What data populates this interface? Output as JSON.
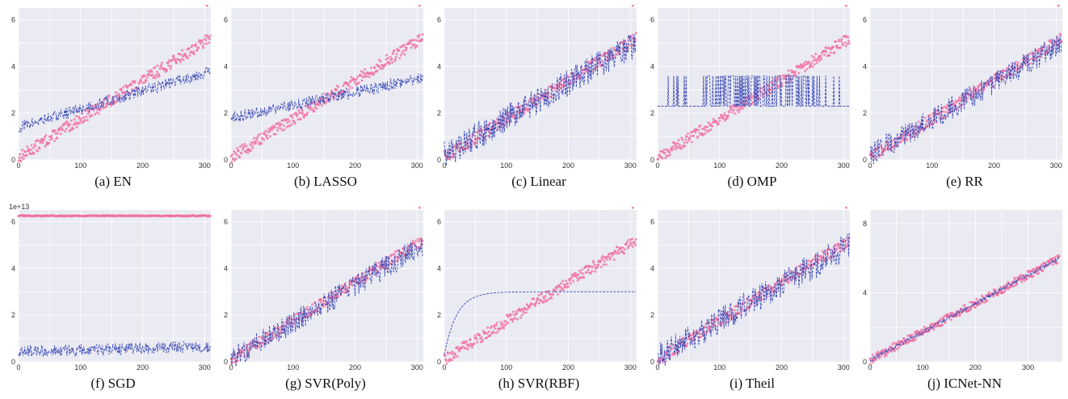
{
  "colors": {
    "plot_bg": "#eaeaf2",
    "grid": "#ffffff",
    "actual_points": "#f06ea0",
    "prediction_line": "#3b4bb4"
  },
  "chart_data": [
    {
      "type": "scatter",
      "caption": "(a)  EN",
      "xlim": [
        0,
        310
      ],
      "ylim": [
        0,
        6.5
      ],
      "xticks": [
        0,
        100,
        200,
        300
      ],
      "yticks": [
        0,
        2,
        4,
        6
      ],
      "series": [
        {
          "kind": "points",
          "role": "actual",
          "n": 310,
          "start": 0.1,
          "end": 5.2,
          "noise": 0.25
        },
        {
          "kind": "line",
          "role": "prediction",
          "model": "linear",
          "start": 1.4,
          "end": 3.8,
          "noise": 0.25
        }
      ],
      "grid": true
    },
    {
      "type": "scatter",
      "caption": "(b)  LASSO",
      "xlim": [
        0,
        310
      ],
      "ylim": [
        0,
        6.5
      ],
      "xticks": [
        0,
        100,
        200,
        300
      ],
      "yticks": [
        0,
        2,
        4,
        6
      ],
      "series": [
        {
          "kind": "points",
          "role": "actual",
          "n": 310,
          "start": 0.1,
          "end": 5.2,
          "noise": 0.25
        },
        {
          "kind": "line",
          "role": "prediction",
          "model": "linear",
          "start": 1.8,
          "end": 3.5,
          "noise": 0.25
        }
      ],
      "grid": true
    },
    {
      "type": "scatter",
      "caption": "(c)  Linear",
      "xlim": [
        0,
        310
      ],
      "ylim": [
        0,
        6.5
      ],
      "xticks": [
        0,
        100,
        200,
        300
      ],
      "yticks": [
        0,
        2,
        4,
        6
      ],
      "series": [
        {
          "kind": "points",
          "role": "actual",
          "n": 310,
          "start": 0.1,
          "end": 5.2,
          "noise": 0.25
        },
        {
          "kind": "line",
          "role": "prediction",
          "model": "linear",
          "start": 0.2,
          "end": 5.0,
          "noise": 0.6
        }
      ],
      "grid": true
    },
    {
      "type": "scatter",
      "caption": "(d)  OMP",
      "xlim": [
        0,
        310
      ],
      "ylim": [
        0,
        6.5
      ],
      "xticks": [
        0,
        100,
        200,
        300
      ],
      "yticks": [
        0,
        2,
        4,
        6
      ],
      "series": [
        {
          "kind": "points",
          "role": "actual",
          "n": 310,
          "start": 0.1,
          "end": 5.2,
          "noise": 0.25
        },
        {
          "kind": "line",
          "role": "prediction",
          "model": "binary",
          "low": 2.3,
          "high": 3.6
        }
      ],
      "grid": true
    },
    {
      "type": "scatter",
      "caption": "(e)  RR",
      "xlim": [
        0,
        310
      ],
      "ylim": [
        0,
        6.5
      ],
      "xticks": [
        0,
        100,
        200,
        300
      ],
      "yticks": [
        0,
        2,
        4,
        6
      ],
      "series": [
        {
          "kind": "points",
          "role": "actual",
          "n": 310,
          "start": 0.1,
          "end": 5.2,
          "noise": 0.25
        },
        {
          "kind": "line",
          "role": "prediction",
          "model": "linear",
          "start": 0.2,
          "end": 5.0,
          "noise": 0.5
        }
      ],
      "grid": true
    },
    {
      "type": "scatter",
      "caption": "(f)  SGD",
      "xlim": [
        0,
        310
      ],
      "ylim": [
        0,
        6.5
      ],
      "xticks": [
        0,
        100,
        200,
        300
      ],
      "yticks": [
        0,
        2,
        4,
        6
      ],
      "scale_label": "1e+13",
      "series": [
        {
          "kind": "points",
          "role": "actual",
          "n": 310,
          "start": 6.25,
          "end": 6.25,
          "noise": 0.02
        },
        {
          "kind": "line",
          "role": "prediction",
          "model": "linear",
          "start": 0.45,
          "end": 0.65,
          "noise": 0.25
        }
      ],
      "grid": true
    },
    {
      "type": "scatter",
      "caption": "(g)  SVR(Poly)",
      "xlim": [
        0,
        310
      ],
      "ylim": [
        0,
        6.5
      ],
      "xticks": [
        0,
        100,
        200,
        300
      ],
      "yticks": [
        0,
        2,
        4,
        6
      ],
      "series": [
        {
          "kind": "points",
          "role": "actual",
          "n": 310,
          "start": 0.1,
          "end": 5.2,
          "noise": 0.25
        },
        {
          "kind": "line",
          "role": "prediction",
          "model": "linear",
          "start": 0.1,
          "end": 5.0,
          "noise": 0.5
        }
      ],
      "grid": true
    },
    {
      "type": "scatter",
      "caption": "(h)  SVR(RBF)",
      "xlim": [
        0,
        310
      ],
      "ylim": [
        0,
        6.5
      ],
      "xticks": [
        0,
        100,
        200,
        300
      ],
      "yticks": [
        0,
        2,
        4,
        6
      ],
      "series": [
        {
          "kind": "points",
          "role": "actual",
          "n": 310,
          "start": 0.1,
          "end": 5.2,
          "noise": 0.25
        },
        {
          "kind": "line",
          "role": "prediction",
          "model": "saturating",
          "start": 0.3,
          "end": 3.0,
          "rate": 0.05
        }
      ],
      "grid": true
    },
    {
      "type": "scatter",
      "caption": "(i)  Theil",
      "xlim": [
        0,
        310
      ],
      "ylim": [
        0,
        6.5
      ],
      "xticks": [
        0,
        100,
        200,
        300
      ],
      "yticks": [
        0,
        2,
        4,
        6
      ],
      "series": [
        {
          "kind": "points",
          "role": "actual",
          "n": 310,
          "start": 0.1,
          "end": 5.2,
          "noise": 0.25
        },
        {
          "kind": "line",
          "role": "prediction",
          "model": "linear",
          "start": 0.2,
          "end": 5.0,
          "noise": 0.6
        }
      ],
      "grid": true
    },
    {
      "type": "scatter",
      "caption": "(j)  ICNet-NN",
      "xlim": [
        0,
        365
      ],
      "ylim": [
        0,
        8.8
      ],
      "xticks": [
        0,
        100,
        200,
        300
      ],
      "yticks": [
        0,
        4,
        8
      ],
      "series": [
        {
          "kind": "points",
          "role": "actual",
          "n": 360,
          "start": 0.1,
          "end": 6.0,
          "noise": 0.25
        },
        {
          "kind": "line",
          "role": "prediction",
          "model": "linear",
          "start": 0.1,
          "end": 6.0,
          "noise": 0.12
        }
      ],
      "grid": true
    }
  ]
}
